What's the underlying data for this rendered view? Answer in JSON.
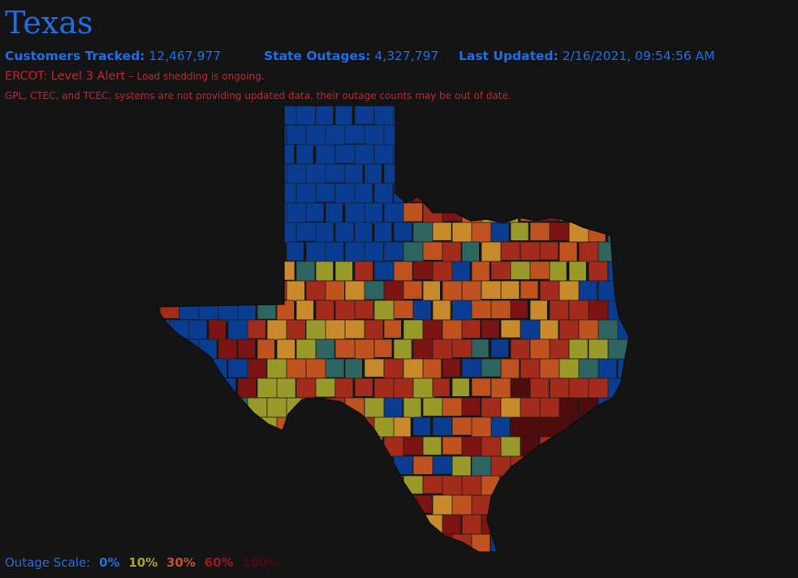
{
  "header": {
    "title": "Texas",
    "customers_label": "Customers Tracked:",
    "customers_value": "12,467,977",
    "outages_label": "State Outages:",
    "outages_value": "4,327,797",
    "updated_label": "Last Updated:",
    "updated_value": "2/16/2021, 09:54:56 AM"
  },
  "alert": {
    "title": "ERCOT: Level 3 Alert",
    "detail": "– Load shedding is ongoing."
  },
  "notice": "GPL, CTEC, and TCEC, systems are not providing updated data, their outage counts may be out of date.",
  "legend": {
    "label": "Outage Scale:",
    "items": [
      {
        "text": "0%",
        "color": "#1a73e8"
      },
      {
        "text": "10%",
        "color": "#a7a331"
      },
      {
        "text": "30%",
        "color": "#c2522a"
      },
      {
        "text": "60%",
        "color": "#a3151d"
      },
      {
        "text": "100%",
        "color": "#4a0b10"
      }
    ]
  },
  "map": {
    "region": "Texas",
    "fill_scale": [
      "#0a3d91",
      "#2f6560",
      "#9a9a2a",
      "#c88a2a",
      "#c0521f",
      "#a32b1c",
      "#7d1414",
      "#4e0c0c"
    ],
    "background": "#141414",
    "border_color": "#1c1c1c"
  }
}
